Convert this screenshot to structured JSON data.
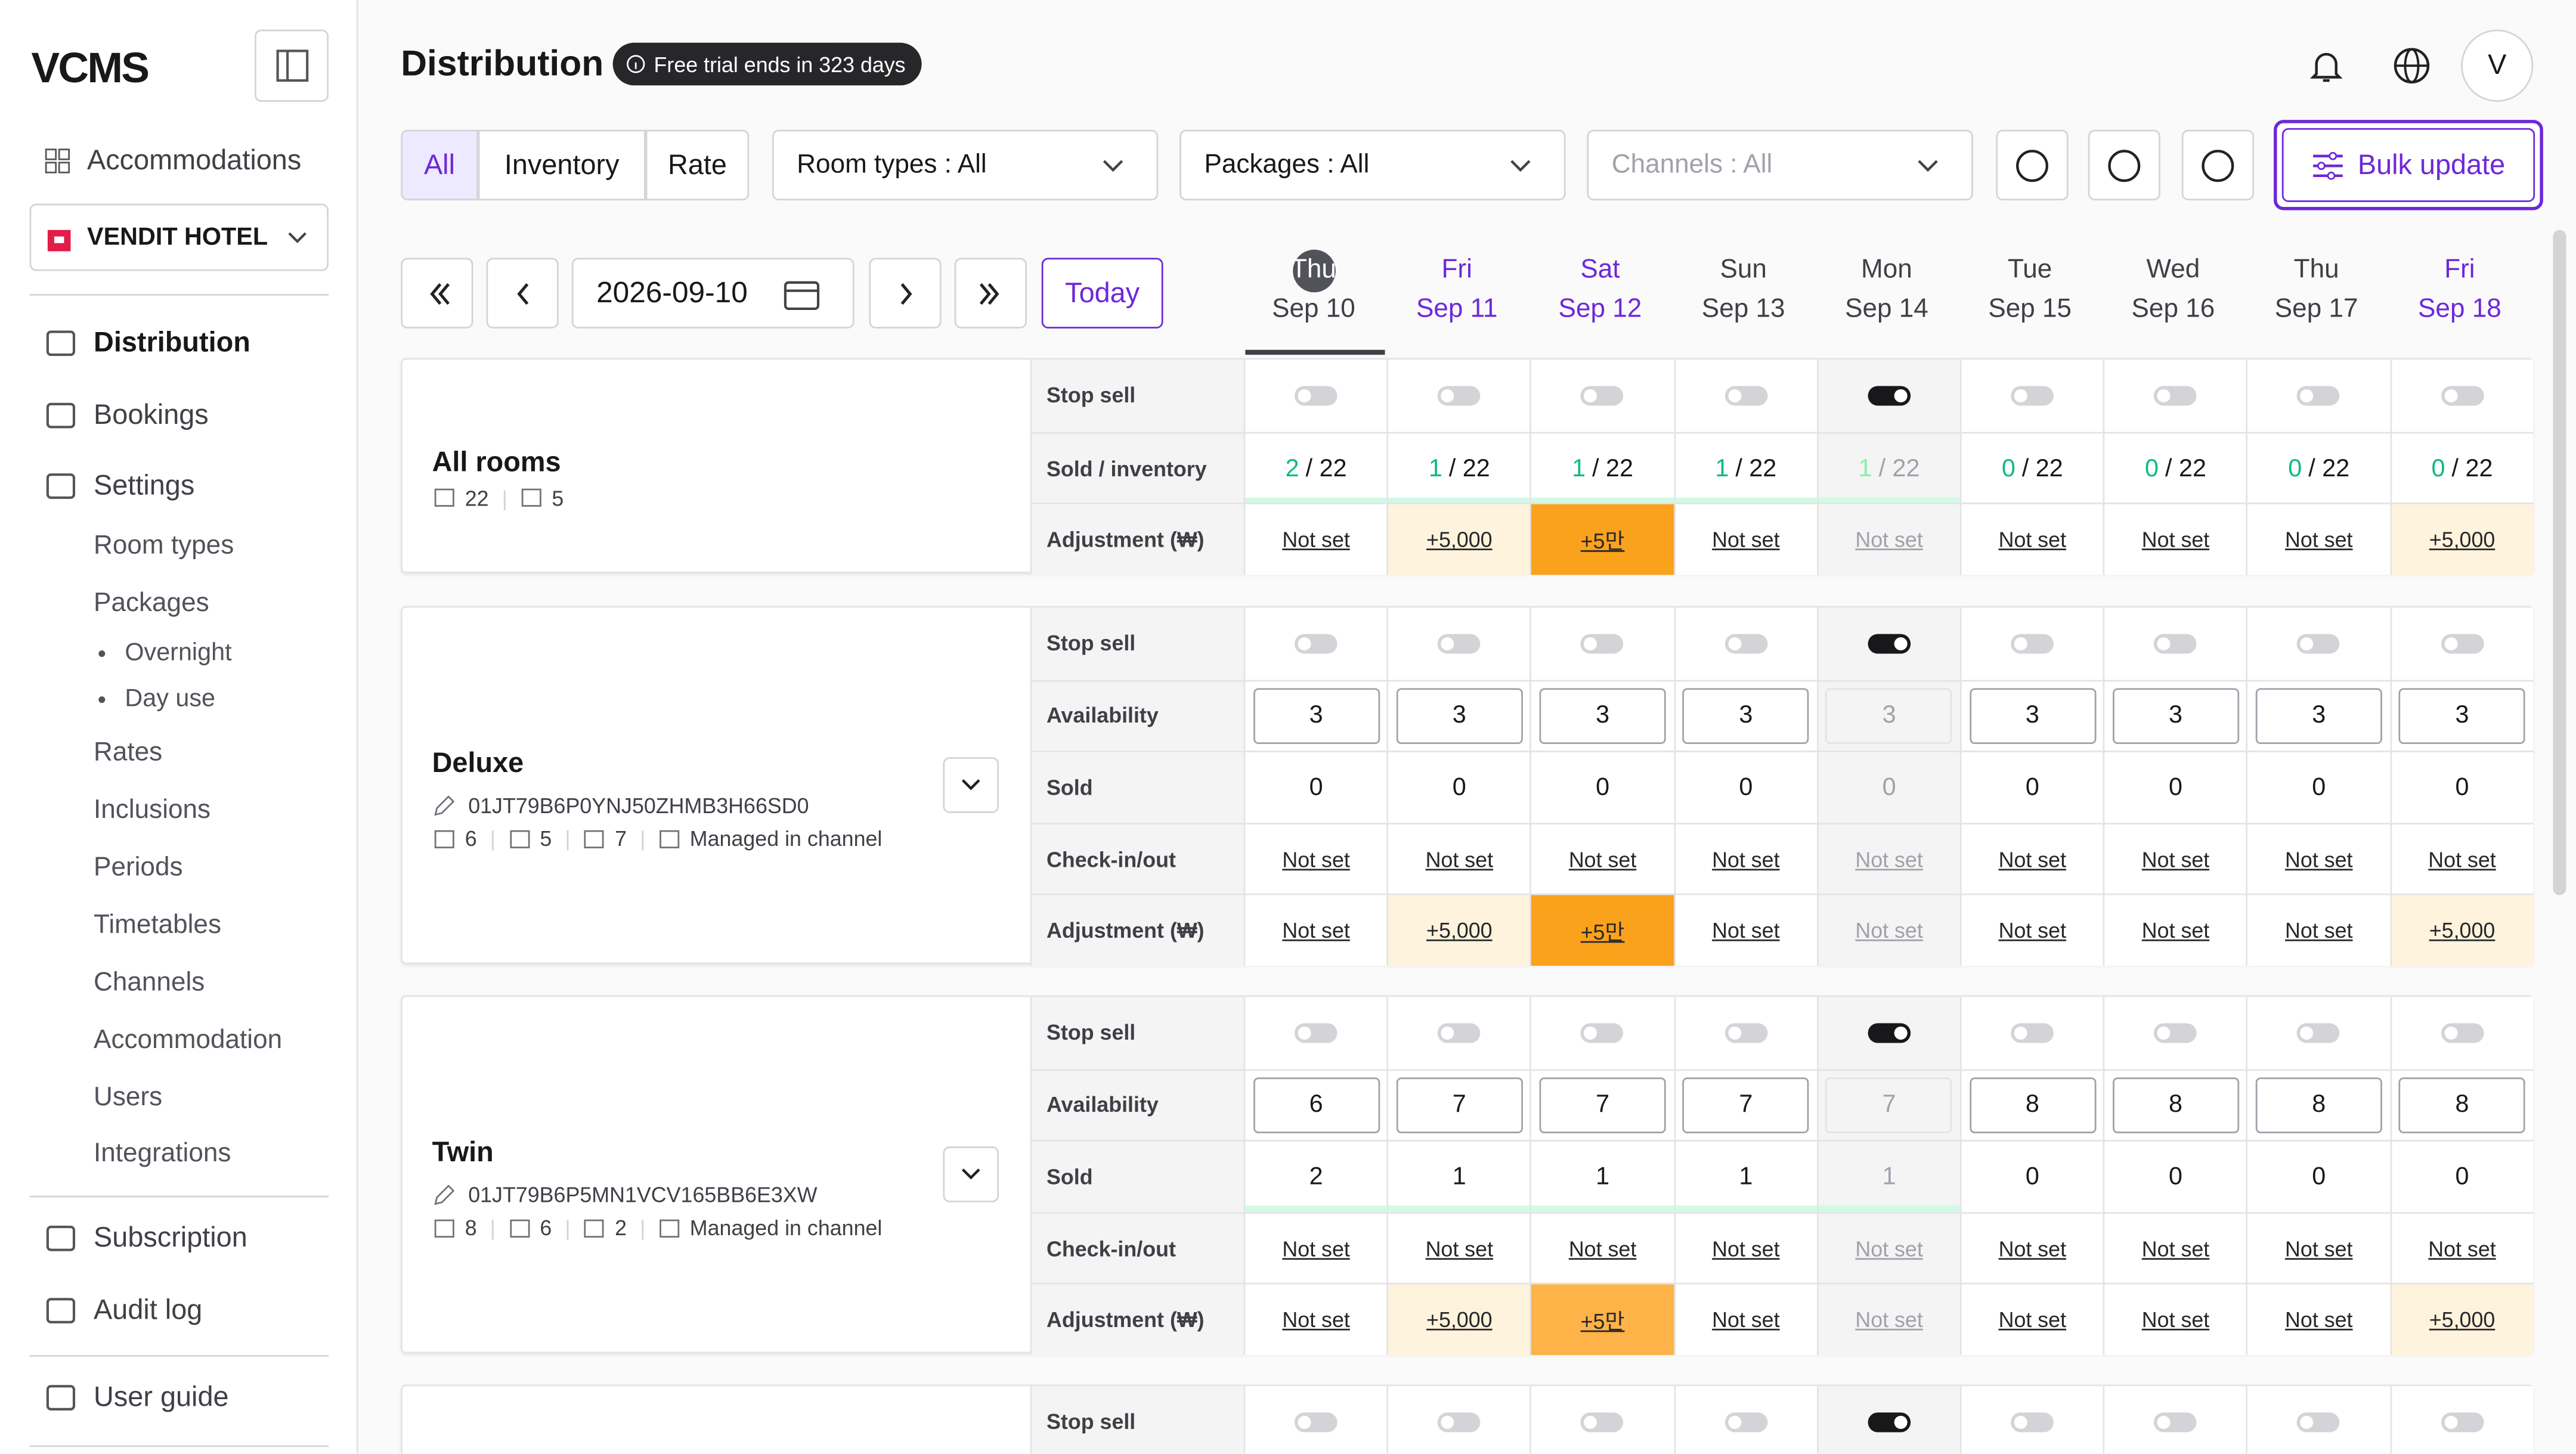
{
  "sidebar": {
    "logo": "VCMS",
    "accommodations": "Accommodations",
    "hotel": "VENDIT HOTEL",
    "nav": [
      "Distribution",
      "Bookings",
      "Settings"
    ],
    "settings_items": [
      "Room types",
      "Packages",
      "Rates",
      "Inclusions",
      "Periods",
      "Timetables",
      "Channels",
      "Accommodation",
      "Users",
      "Integrations"
    ],
    "package_items": [
      "Overnight",
      "Day use"
    ],
    "bottom": [
      "Subscription",
      "Audit log"
    ],
    "guide": "User guide"
  },
  "header": {
    "title": "Distribution",
    "badge": "Free trial ends in 323 days",
    "avatar": "V"
  },
  "toolbar": {
    "tabs": [
      "All",
      "Inventory",
      "Rate"
    ],
    "room_types": "Room types : All",
    "packages": "Packages : All",
    "channels": "Channels : All",
    "bulk": "Bulk update"
  },
  "date_nav": {
    "date": "2026-09-10",
    "today": "Today"
  },
  "days": [
    {
      "dow": "Thu",
      "date": "Sep 10"
    },
    {
      "dow": "Fri",
      "date": "Sep 11"
    },
    {
      "dow": "Sat",
      "date": "Sep 12"
    },
    {
      "dow": "Sun",
      "date": "Sep 13"
    },
    {
      "dow": "Mon",
      "date": "Sep 14"
    },
    {
      "dow": "Tue",
      "date": "Sep 15"
    },
    {
      "dow": "Wed",
      "date": "Sep 16"
    },
    {
      "dow": "Thu",
      "date": "Sep 17"
    },
    {
      "dow": "Fri",
      "date": "Sep 18"
    }
  ],
  "sections": [
    {
      "name": "All rooms",
      "stats": [
        "22",
        "5"
      ],
      "rows": [
        {
          "label": "Stop sell",
          "toggles": [
            false,
            false,
            false,
            false,
            true,
            false,
            false,
            false,
            false
          ]
        },
        {
          "label": "Sold / inventory",
          "sold": [
            2,
            1,
            1,
            1,
            1,
            0,
            0,
            0,
            0
          ],
          "inventory": "/ 22"
        },
        {
          "label": "Adjustment (₩)",
          "links": [
            "Not set",
            "+5,000",
            "+5만",
            "Not set",
            "Not set",
            "Not set",
            "Not set",
            "Not set",
            "+5,000"
          ]
        }
      ]
    },
    {
      "name": "Deluxe",
      "code": "01JT79B6P0YNJ50ZHMB3H66SD0",
      "stats": [
        "6",
        "5",
        "7"
      ],
      "managed": "Managed in channel",
      "rows": [
        {
          "label": "Stop sell",
          "toggles": [
            false,
            false,
            false,
            false,
            true,
            false,
            false,
            false,
            false
          ]
        },
        {
          "label": "Availability",
          "inputs": [
            3,
            3,
            3,
            3,
            3,
            3,
            3,
            3,
            3
          ]
        },
        {
          "label": "Sold",
          "cells": [
            0,
            0,
            0,
            0,
            0,
            0,
            0,
            0,
            0
          ]
        },
        {
          "label": "Check-in/out",
          "links": [
            "Not set",
            "Not set",
            "Not set",
            "Not set",
            "Not set",
            "Not set",
            "Not set",
            "Not set",
            "Not set"
          ]
        },
        {
          "label": "Adjustment (₩)",
          "links": [
            "Not set",
            "+5,000",
            "+5만",
            "Not set",
            "Not set",
            "Not set",
            "Not set",
            "Not set",
            "+5,000"
          ]
        }
      ]
    },
    {
      "name": "Twin",
      "code": "01JT79B6P5MN1VCV165BB6E3XW",
      "stats": [
        "8",
        "6",
        "2"
      ],
      "managed": "Managed in channel",
      "rows": [
        {
          "label": "Stop sell",
          "toggles": [
            false,
            false,
            false,
            false,
            true,
            false,
            false,
            false,
            false
          ]
        },
        {
          "label": "Availability",
          "inputs": [
            6,
            7,
            7,
            7,
            7,
            8,
            8,
            8,
            8
          ]
        },
        {
          "label": "Sold",
          "cells": [
            2,
            1,
            1,
            1,
            1,
            0,
            0,
            0,
            0
          ]
        },
        {
          "label": "Check-in/out",
          "links": [
            "Not set",
            "Not set",
            "Not set",
            "Not set",
            "Not set",
            "Not set",
            "Not set",
            "Not set",
            "Not set"
          ]
        },
        {
          "label": "Adjustment (₩)",
          "links": [
            "Not set",
            "+5,000",
            "+5만",
            "Not set",
            "Not set",
            "Not set",
            "Not set",
            "Not set",
            "+5,000"
          ]
        }
      ]
    },
    {
      "rows": [
        {
          "label": "Stop sell",
          "toggles": [
            false,
            false,
            false,
            false,
            true,
            false,
            false,
            false,
            false
          ]
        }
      ]
    }
  ]
}
